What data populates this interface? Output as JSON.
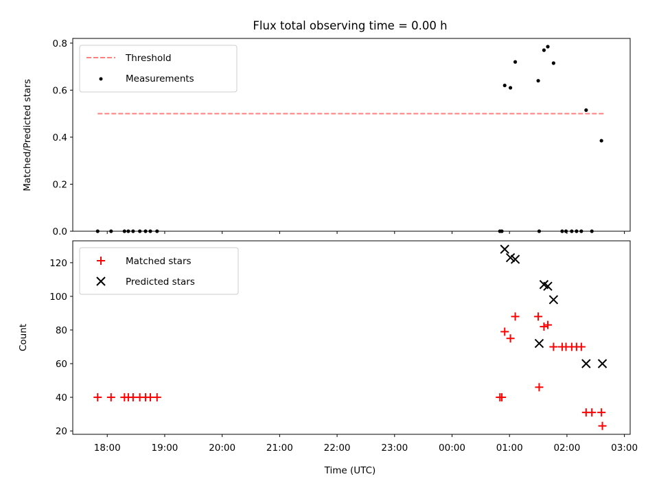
{
  "chart_data": [
    {
      "type": "line",
      "panel": "top",
      "title": "Flux total observing time = 0.00 h",
      "ylabel": "Matched/Predicted stars",
      "ylim": [
        0,
        0.82
      ],
      "yticks": [
        0.0,
        0.2,
        0.4,
        0.6,
        0.8
      ],
      "ytick_labels": [
        "0.0",
        "0.2",
        "0.4",
        "0.6",
        "0.8"
      ],
      "legend_position": "upper-left",
      "series": [
        {
          "name": "Threshold",
          "kind": "dashed-line",
          "color": "#ff7f7f",
          "x": [
            "17:50",
            "02:40"
          ],
          "y": [
            0.5,
            0.5
          ]
        },
        {
          "name": "Measurements",
          "kind": "scatter",
          "marker": "dot",
          "color": "#000000",
          "x": [
            "17:50",
            "18:04",
            "18:18",
            "18:22",
            "18:27",
            "18:34",
            "18:40",
            "18:45",
            "18:52",
            "00:50",
            "00:52",
            "00:55",
            "01:01",
            "01:06",
            "01:30",
            "01:31",
            "01:36",
            "01:40",
            "01:46",
            "01:55",
            "01:59",
            "02:05",
            "02:10",
            "02:15",
            "02:20",
            "02:26",
            "02:36"
          ],
          "y": [
            0.0,
            0.0,
            0.0,
            0.0,
            0.0,
            0.0,
            0.0,
            0.0,
            0.0,
            0.0,
            0.0,
            0.62,
            0.61,
            0.72,
            0.64,
            0.0,
            0.77,
            0.785,
            0.715,
            0.0,
            0.0,
            0.0,
            0.0,
            0.0,
            0.515,
            0.0,
            0.385
          ]
        }
      ]
    },
    {
      "type": "scatter",
      "panel": "bottom",
      "xlabel": "Time (UTC)",
      "ylabel": "Count",
      "ylim": [
        18,
        133
      ],
      "yticks": [
        20,
        40,
        60,
        80,
        100,
        120
      ],
      "ytick_labels": [
        "20",
        "40",
        "60",
        "80",
        "100",
        "120"
      ],
      "legend_position": "upper-left",
      "series": [
        {
          "name": "Matched stars",
          "marker": "plus",
          "color": "#ff0000",
          "x": [
            "17:50",
            "18:04",
            "18:18",
            "18:22",
            "18:27",
            "18:34",
            "18:40",
            "18:45",
            "18:52",
            "00:50",
            "00:52",
            "00:55",
            "01:01",
            "01:06",
            "01:30",
            "01:31",
            "01:36",
            "01:40",
            "01:46",
            "01:55",
            "01:59",
            "02:05",
            "02:10",
            "02:15",
            "02:20",
            "02:26",
            "02:36",
            "02:37"
          ],
          "y": [
            40,
            40,
            40,
            40,
            40,
            40,
            40,
            40,
            40,
            40,
            40,
            79,
            75,
            88,
            88,
            46,
            82,
            83,
            70,
            70,
            70,
            70,
            70,
            70,
            31,
            31,
            31,
            23
          ]
        },
        {
          "name": "Predicted stars",
          "marker": "x",
          "color": "#000000",
          "x": [
            "00:55",
            "01:01",
            "01:06",
            "01:31",
            "01:36",
            "01:40",
            "01:46",
            "02:20",
            "02:37"
          ],
          "y": [
            128,
            123,
            122,
            72,
            107,
            106,
            98,
            60,
            60
          ]
        }
      ]
    }
  ],
  "x_axis": {
    "start": "17:24",
    "end": "03:06",
    "ticks": [
      "18:00",
      "19:00",
      "20:00",
      "21:00",
      "22:00",
      "23:00",
      "00:00",
      "01:00",
      "02:00",
      "03:00"
    ]
  },
  "colors": {
    "threshold": "#ff7f7f",
    "matched": "#ff0000",
    "measurement": "#000000",
    "predicted": "#000000"
  }
}
